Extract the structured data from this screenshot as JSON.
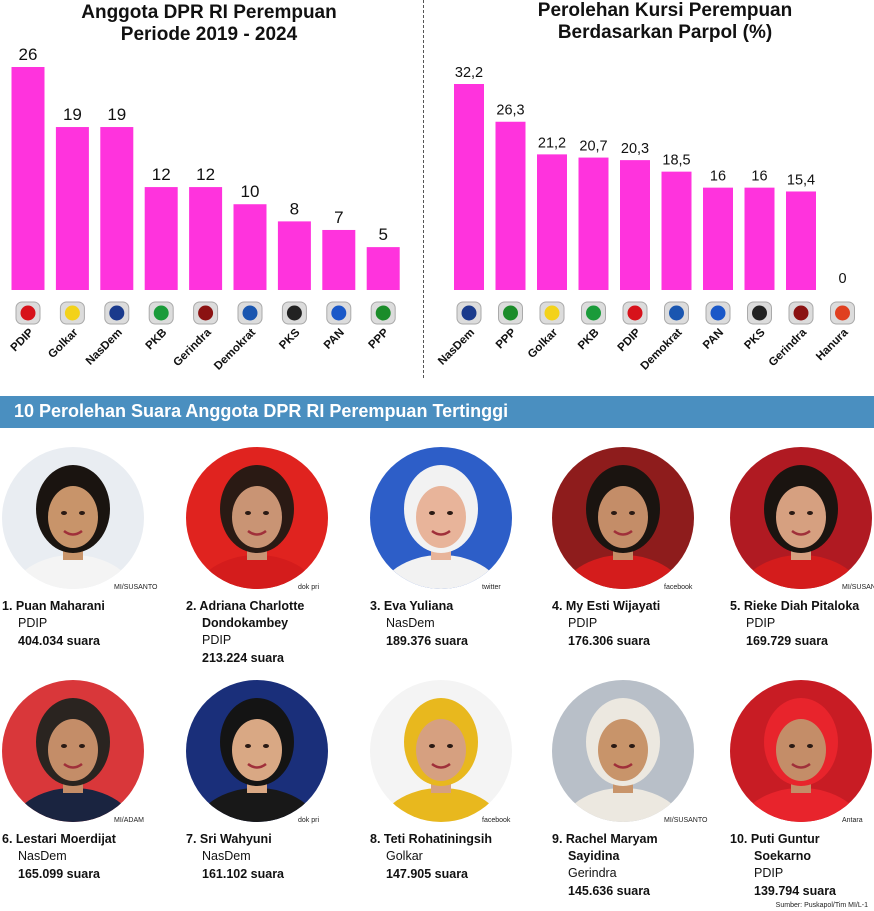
{
  "chart_data": [
    {
      "type": "bar",
      "title": "Anggota DPR RI Perempuan\nPeriode 2019 - 2024",
      "title_line1": "Anggota DPR RI Perempuan",
      "title_line2": "Periode 2019 - 2024",
      "categories": [
        "PDIP",
        "Golkar",
        "NasDem",
        "PKB",
        "Gerindra",
        "Demokrat",
        "PKS",
        "PAN",
        "PPP"
      ],
      "values": [
        26,
        19,
        19,
        12,
        12,
        10,
        8,
        7,
        5
      ],
      "value_labels": [
        "26",
        "19",
        "19",
        "12",
        "12",
        "10",
        "8",
        "7",
        "5"
      ],
      "ylim": [
        0,
        26
      ],
      "bar_color": "#ff33dd",
      "grid": false
    },
    {
      "type": "bar",
      "title": "Perolehan Kursi Perempuan\nBerdasarkan Parpol (%)",
      "title_line1": "Perolehan Kursi Perempuan",
      "title_line2": "Berdasarkan Parpol (%)",
      "categories": [
        "NasDem",
        "PPP",
        "Golkar",
        "PKB",
        "PDIP",
        "Demokrat",
        "PAN",
        "PKS",
        "Gerindra",
        "Hanura"
      ],
      "values": [
        32.2,
        26.3,
        21.2,
        20.7,
        20.3,
        18.5,
        16,
        16,
        15.4,
        0
      ],
      "value_labels": [
        "32,2",
        "26,3",
        "21,2",
        "20,7",
        "20,3",
        "18,5",
        "16",
        "16",
        "15,4",
        "0"
      ],
      "ylim": [
        0,
        32.2
      ],
      "bar_color": "#ff33dd",
      "grid": false
    }
  ],
  "party_logo_colors": {
    "PDIP": "#d7121b",
    "Golkar": "#f3d21a",
    "NasDem": "#1a3a8c",
    "PKB": "#1a9b3a",
    "Gerindra": "#8b1212",
    "Demokrat": "#1a56b0",
    "PKS": "#222222",
    "PAN": "#1a58c8",
    "PPP": "#1b8c2a",
    "Hanura": "#e04020"
  },
  "banner": {
    "title": "10 Perolehan Suara Anggota DPR RI Perempuan Tertinggi",
    "color": "#4a8fc0"
  },
  "people": [
    {
      "rank_name": "1. Puan Maharani",
      "name2": "",
      "party": "PDIP",
      "votes": "404.034 suara",
      "credit": "MI/SUSANTO",
      "bg": "#e9edf2",
      "hair": "#1a1410",
      "skin": "#c8946a",
      "clothes": "#f4f4f4"
    },
    {
      "rank_name": "2. Adriana Charlotte",
      "name2": "Dondokambey",
      "party": "PDIP",
      "votes": "213.224 suara",
      "credit": "dok pri",
      "bg": "#e0231f",
      "hair": "#2a1a14",
      "skin": "#c99474",
      "clothes": "#d41c1c"
    },
    {
      "rank_name": "3. Eva Yuliana",
      "name2": "",
      "party": "NasDem",
      "votes": "189.376 suara",
      "credit": "twitter",
      "bg": "#2d5ec8",
      "hair": "#f2f2f2",
      "skin": "#e8b49a",
      "clothes": "#f2f2f2"
    },
    {
      "rank_name": "4. My Esti Wijayati",
      "name2": "",
      "party": "PDIP",
      "votes": "176.306 suara",
      "credit": "facebook",
      "bg": "#8e1c1c",
      "hair": "#1a1410",
      "skin": "#c48d68",
      "clothes": "#d41c1c"
    },
    {
      "rank_name": "5. Rieke Diah Pitaloka",
      "name2": "",
      "party": "PDIP",
      "votes": "169.729 suara",
      "credit": "MI/SUSANTO",
      "bg": "#b01a22",
      "hair": "#1a1410",
      "skin": "#d6a080",
      "clothes": "#d41c1c"
    },
    {
      "rank_name": "6. Lestari Moerdijat",
      "name2": "",
      "party": "NasDem",
      "votes": "165.099 suara",
      "credit": "MI/ADAM",
      "bg": "#d9373a",
      "hair": "#2a2420",
      "skin": "#c48d68",
      "clothes": "#1a2440"
    },
    {
      "rank_name": "7. Sri Wahyuni",
      "name2": "",
      "party": "NasDem",
      "votes": "161.102 suara",
      "credit": "dok pri",
      "bg": "#1a2f7a",
      "hair": "#141414",
      "skin": "#d9a884",
      "clothes": "#181818"
    },
    {
      "rank_name": "8. Teti Rohatiningsih",
      "name2": "",
      "party": "Golkar",
      "votes": "147.905 suara",
      "credit": "facebook",
      "bg": "#f4f4f4",
      "hair": "#e8b81e",
      "skin": "#d6a080",
      "clothes": "#e8b81e"
    },
    {
      "rank_name": "9. Rachel Maryam",
      "name2": "Sayidina",
      "party": "Gerindra",
      "votes": "145.636 suara",
      "credit": "MI/SUSANTO",
      "bg": "#b8bfc8",
      "hair": "#ece8e0",
      "skin": "#c8946a",
      "clothes": "#ece8e0"
    },
    {
      "rank_name": "10. Puti Guntur",
      "name2": "Soekarno",
      "party": "PDIP",
      "votes": "139.794 suara",
      "credit": "Antara",
      "bg": "#c81c24",
      "hair": "#e8242c",
      "skin": "#c48d68",
      "clothes": "#e8242c"
    }
  ],
  "source": "Sumber: Puskapol/Tim MI/L-1"
}
